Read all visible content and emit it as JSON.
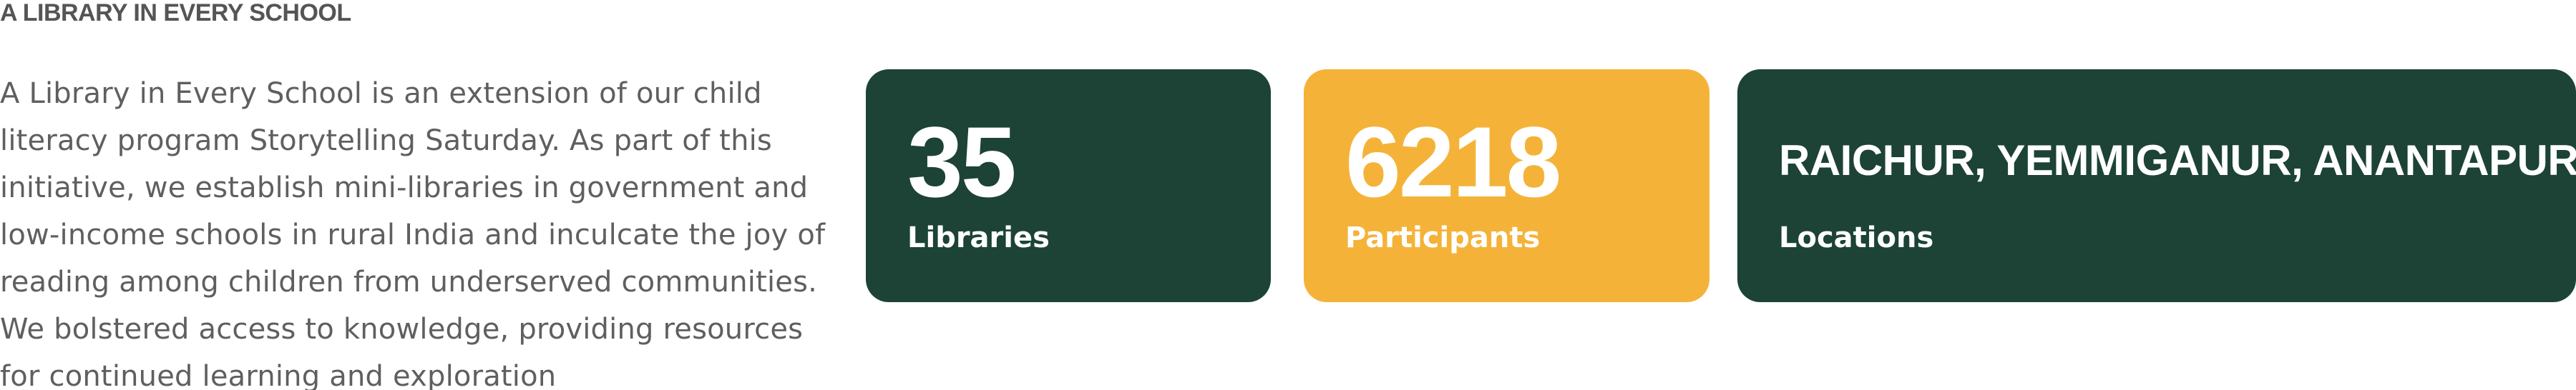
{
  "section": {
    "title": "A LIBRARY IN EVERY SCHOOL",
    "description": "A Library in Every School is an extension of our child literacy program Storytelling Saturday. As part of this initiative, we establish mini-libraries in government and low-income schools in rural India and inculcate the joy of reading among children from underserved communities. We bolstered access to knowledge, providing resources for continued learning and exploration"
  },
  "stats": [
    {
      "value": "35",
      "label": "Libraries",
      "color": "#1c4335"
    },
    {
      "value": "6218",
      "label": "Participants",
      "color": "#f4b338"
    },
    {
      "value": "RAICHUR, YEMMIGANUR, ANANTAPUR",
      "label": "Locations",
      "color": "#1c4335"
    }
  ],
  "colors": {
    "accent_green": "#1c4335",
    "accent_yellow": "#f4b338",
    "text_gray": "#5f5f5f"
  }
}
